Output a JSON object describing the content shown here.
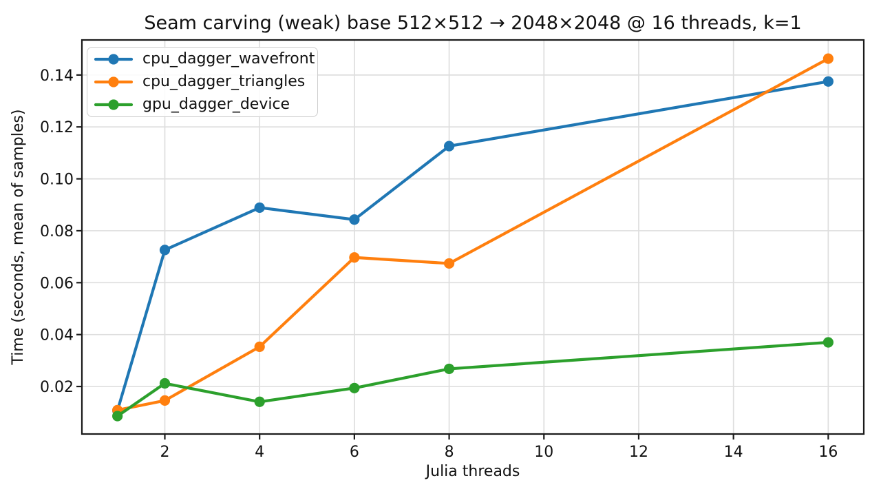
{
  "chart_data": {
    "type": "line",
    "title": "Seam carving (weak) base 512×512 → 2048×2048 @ 16 threads, k=1",
    "xlabel": "Julia threads",
    "ylabel": "Time (seconds, mean of samples)",
    "x": [
      1,
      2,
      4,
      6,
      8,
      16
    ],
    "series": [
      {
        "name": "cpu_dagger_wavefront",
        "color": "#1f77b4",
        "values": [
          0.0107,
          0.0726,
          0.0889,
          0.0843,
          0.1126,
          0.1375
        ]
      },
      {
        "name": "cpu_dagger_triangles",
        "color": "#ff7f0e",
        "values": [
          0.0109,
          0.0146,
          0.0353,
          0.0697,
          0.0674,
          0.1463
        ]
      },
      {
        "name": "gpu_dagger_device",
        "color": "#2ca02c",
        "values": [
          0.0086,
          0.0212,
          0.0141,
          0.0194,
          0.0268,
          0.037
        ]
      }
    ],
    "xlim": [
      0.25,
      16.75
    ],
    "ylim": [
      0.0017,
      0.1535
    ],
    "xticks": [
      2,
      4,
      6,
      8,
      10,
      12,
      14,
      16
    ],
    "xtick_labels": [
      "2",
      "4",
      "6",
      "8",
      "10",
      "12",
      "14",
      "16"
    ],
    "yticks": [
      0.02,
      0.04,
      0.06,
      0.08,
      0.1,
      0.12,
      0.14
    ],
    "ytick_labels": [
      "0.02",
      "0.04",
      "0.06",
      "0.08",
      "0.10",
      "0.12",
      "0.14"
    ],
    "grid": true,
    "legend_position": "upper left",
    "marker": "circle"
  },
  "style": {
    "background": "#ffffff",
    "grid_color": "#dedede",
    "spine_color": "#1a1a1a",
    "tick_color": "#1a1a1a",
    "text_color": "#111111"
  }
}
